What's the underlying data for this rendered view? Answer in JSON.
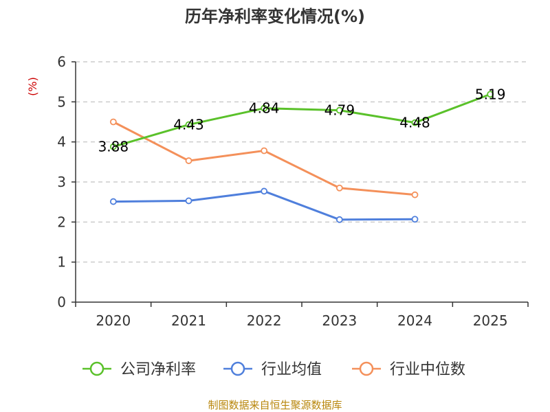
{
  "chart_data": {
    "type": "line",
    "title": "历年净利率变化情况(%)",
    "ylabel": "(%)",
    "xlabel": "",
    "categories": [
      "2020",
      "2021",
      "2022",
      "2023",
      "2024",
      "2025"
    ],
    "ylim": [
      0,
      6
    ],
    "yticks": [
      "0",
      "1",
      "2",
      "3",
      "4",
      "5",
      "6"
    ],
    "grid": true,
    "legend_position": "bottom",
    "series": [
      {
        "name": "公司净利率",
        "color": "#5ac12a",
        "values": [
          3.88,
          4.43,
          4.84,
          4.79,
          4.48,
          5.19
        ],
        "labels": [
          "3.88",
          "4.43",
          "4.84",
          "4.79",
          "4.48",
          "5.19"
        ]
      },
      {
        "name": "行业均值",
        "color": "#4f7fdc",
        "values": [
          2.51,
          2.53,
          2.77,
          2.06,
          2.07,
          null
        ]
      },
      {
        "name": "行业中位数",
        "color": "#f4905a",
        "values": [
          4.5,
          3.53,
          3.78,
          2.85,
          2.68,
          null
        ]
      }
    ],
    "source": "制图数据来自恒生聚源数据库"
  }
}
